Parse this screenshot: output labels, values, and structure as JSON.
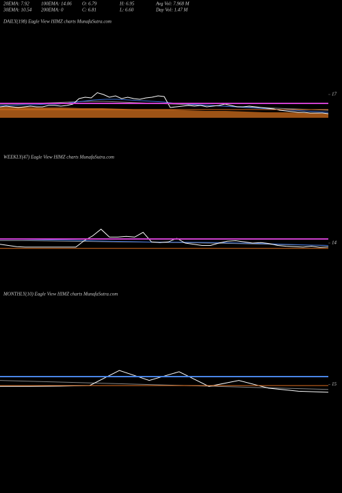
{
  "chart_data": [
    {
      "type": "line",
      "header": [
        [
          "20EMA: 7.92",
          "100EMA: 14.06",
          "O: 6.79",
          "H: 6.95",
          "Avg Vol: 7.968  M"
        ],
        [
          "30EMA: 10.54",
          "200EMA: 0",
          "C: 6.81",
          "L: 6.60",
          "Day Vol: 1.47  M"
        ]
      ],
      "title": "DAILY(198) Eagle   View  HIMZ charts MunafaSutra.com",
      "ylim": [
        0,
        24
      ],
      "yticks": [
        17
      ],
      "series": [
        {
          "color": "#b8621a",
          "fill": true,
          "values": [
            8,
            8,
            7.5,
            7.5,
            7,
            7,
            6.5,
            6,
            6,
            5.5,
            5,
            5,
            4.5,
            4,
            4,
            3.5,
            3
          ]
        },
        {
          "color": "#888888",
          "values": [
            10,
            10,
            10.5,
            11,
            11.5,
            12,
            12,
            11.5,
            11,
            10.5,
            10,
            9.5,
            9,
            8.5,
            8,
            7.5,
            7,
            6.5,
            6,
            5.5
          ]
        },
        {
          "color": "#3a6fd8",
          "values": [
            9,
            9,
            9.5,
            9.5,
            10,
            10,
            11,
            12,
            13,
            13.5,
            13.5,
            13,
            12.5,
            12,
            11.5,
            10.5,
            10,
            9.5,
            9,
            8.5,
            8,
            7.5,
            7,
            6.5,
            6,
            5.5,
            5,
            4.5,
            4
          ]
        },
        {
          "color": "#ffffff",
          "values": [
            8,
            8.5,
            8,
            7.5,
            8,
            8.5,
            8,
            8,
            9,
            9,
            8.5,
            9,
            10,
            14,
            15,
            14.5,
            18.3,
            17,
            15,
            16,
            14,
            15,
            14,
            13.5,
            14.5,
            15,
            16,
            15.5,
            7.5,
            8,
            8.5,
            9,
            8.5,
            9,
            8,
            8.5,
            9,
            10,
            9,
            8,
            8,
            8.5,
            8,
            7.5,
            7,
            6.5,
            5.5,
            5,
            4.5,
            4,
            4,
            3.5,
            3.5,
            3.5,
            3
          ]
        }
      ],
      "hlines": [
        {
          "color": "#d040d0",
          "value": 10.5
        },
        {
          "color": "#e07020",
          "value": 6
        }
      ]
    },
    {
      "type": "line",
      "title": "WEEKLY(47) Eagle   View  HIMZ charts MunafaSutra.com",
      "ylim": [
        10,
        20
      ],
      "yticks": [
        14
      ],
      "series": [
        {
          "color": "#888888",
          "values": [
            15,
            15,
            14.8,
            14.7,
            14.5,
            14.4,
            14.2,
            14,
            13.8,
            13.5,
            13.2,
            13
          ]
        },
        {
          "color": "#3a6fd8",
          "values": [
            15.5,
            15.5,
            15.3,
            15.2,
            15,
            14.8,
            14.6,
            14.4,
            14.4,
            14.3,
            14.2,
            14,
            13.8,
            13.5,
            13.2,
            13
          ]
        },
        {
          "color": "#ffffff",
          "values": [
            13.5,
            13,
            12.5,
            12.3,
            12.3,
            12.3,
            12.3,
            12.3,
            12.3,
            12.3,
            15,
            17,
            19.8,
            16.5,
            16.5,
            16.8,
            16.5,
            18.5,
            14.5,
            14.2,
            14.5,
            16,
            14,
            13.5,
            13,
            13,
            14,
            14.8,
            15,
            14.5,
            14,
            14.2,
            13.8,
            13,
            12.7,
            12.5,
            12.3,
            12.7,
            12.2,
            12.4
          ]
        }
      ],
      "hlines": [
        {
          "color": "#d040d0",
          "value": 15.7
        },
        {
          "color": "#e07020",
          "value": 11.8
        }
      ]
    },
    {
      "type": "line",
      "title": "MONTHLY(10) Eagle   View  HIMZ charts MunafaSutra.com",
      "ylim": [
        10,
        22
      ],
      "yticks": [
        15
      ],
      "series": [
        {
          "color": "#888888",
          "values": [
            16.5,
            16,
            15.5,
            15,
            14.5,
            14,
            13.5,
            13
          ]
        },
        {
          "color": "#ffffff",
          "values": [
            14.2,
            14.2,
            14.3,
            14.5,
            20.4,
            16.5,
            19.9,
            14.2,
            16.5,
            13.5,
            12.3,
            11.9
          ]
        }
      ],
      "hlines": [
        {
          "color": "#4a86e8",
          "value": 18
        },
        {
          "color": "#e07020",
          "value": 14.5
        }
      ]
    }
  ]
}
